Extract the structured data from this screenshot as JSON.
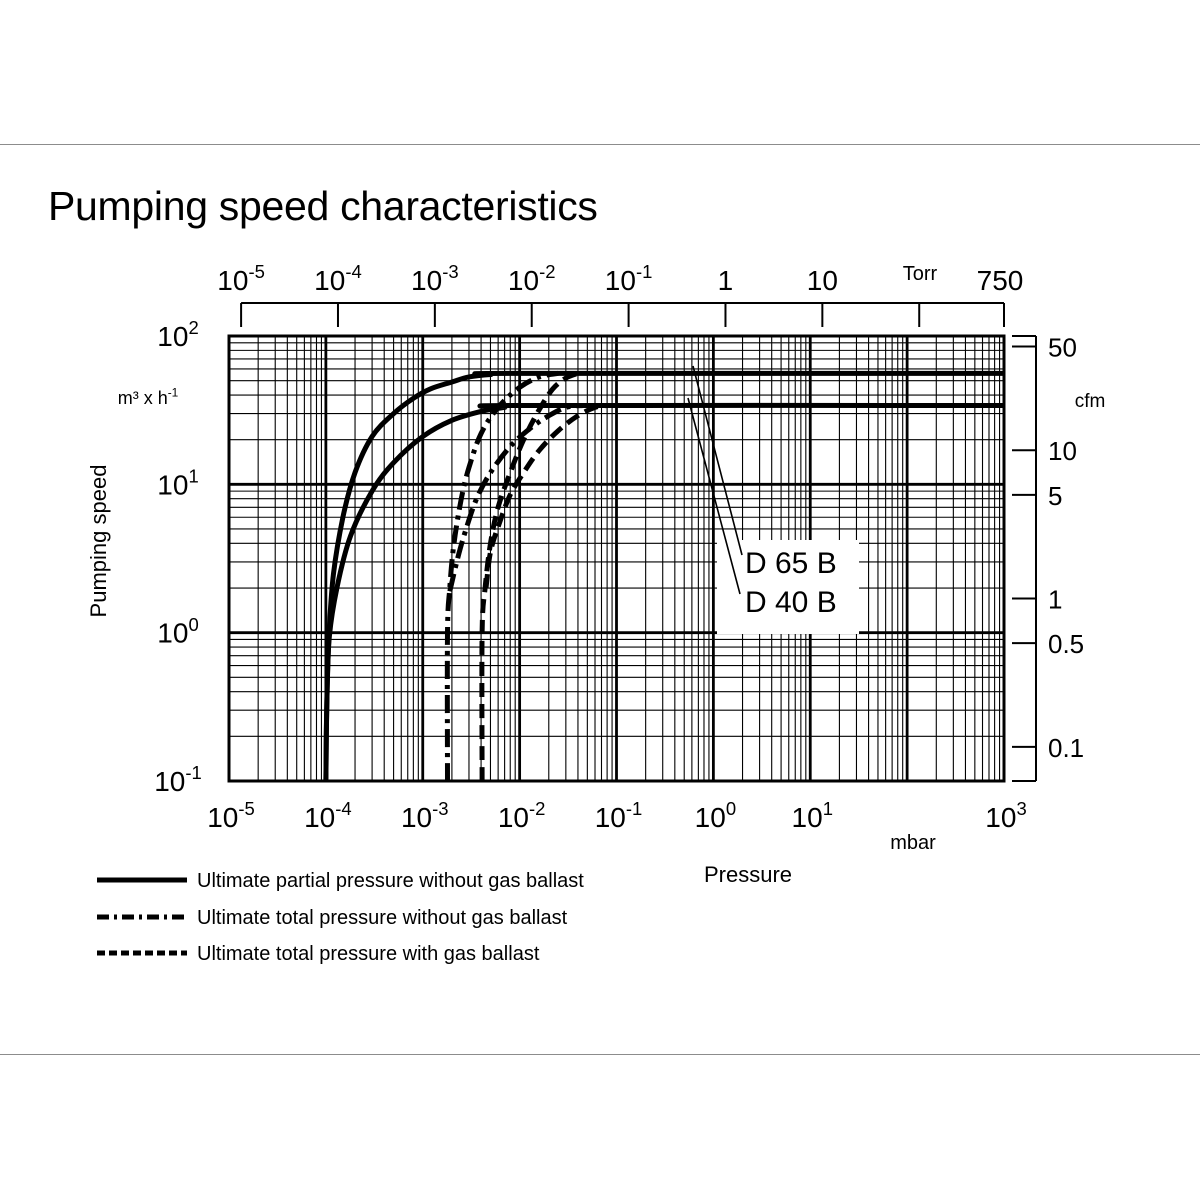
{
  "title": "Pumping speed characteristics",
  "chart_data": {
    "type": "line",
    "title": "Pumping speed characteristics",
    "xlabel": "Pressure",
    "x_unit": "mbar",
    "ylabel": "Pumping speed",
    "y_unit": {
      "base": "m³ x h",
      "exp": "-1"
    },
    "x_scale": "log",
    "y_scale": "log",
    "xlim": [
      1e-05,
      1000
    ],
    "ylim": [
      0.1,
      100
    ],
    "grid": true,
    "x_ticks": [
      {
        "base": "10",
        "exp": "-5",
        "value": 1e-05
      },
      {
        "base": "10",
        "exp": "-4",
        "value": 0.0001
      },
      {
        "base": "10",
        "exp": "-3",
        "value": 0.001
      },
      {
        "base": "10",
        "exp": "-2",
        "value": 0.01
      },
      {
        "base": "10",
        "exp": "-1",
        "value": 0.1
      },
      {
        "base": "10",
        "exp": "0",
        "value": 1
      },
      {
        "base": "10",
        "exp": "1",
        "value": 10
      },
      {
        "base": "10",
        "exp": "3",
        "value": 1000
      }
    ],
    "y_ticks": [
      {
        "base": "10",
        "exp": "2",
        "value": 100
      },
      {
        "base": "10",
        "exp": "1",
        "value": 10
      },
      {
        "base": "10",
        "exp": "0",
        "value": 1
      },
      {
        "base": "10",
        "exp": "-1",
        "value": 0.1
      }
    ],
    "torr_axis": {
      "unit": "Torr",
      "ticks": [
        {
          "base": "10",
          "exp": "-5",
          "value": 1e-05
        },
        {
          "base": "10",
          "exp": "-4",
          "value": 0.0001
        },
        {
          "base": "10",
          "exp": "-3",
          "value": 0.001
        },
        {
          "base": "10",
          "exp": "-2",
          "value": 0.01
        },
        {
          "base": "10",
          "exp": "-1",
          "value": 0.1
        },
        {
          "base": "1",
          "exp": "",
          "value": 1
        },
        {
          "base": "10",
          "exp": "",
          "value": 10
        },
        {
          "base": "",
          "exp": "",
          "value": 100
        },
        {
          "base": "750",
          "exp": "",
          "value": 750
        }
      ]
    },
    "cfm_axis": {
      "unit": "cfm",
      "ticks": [
        {
          "label": "50",
          "value": 50
        },
        {
          "label": "10",
          "value": 10
        },
        {
          "label": "5",
          "value": 5
        },
        {
          "label": "1",
          "value": 1
        },
        {
          "label": "0.5",
          "value": 0.5
        },
        {
          "label": "0.1",
          "value": 0.1
        }
      ]
    },
    "curve_labels": [
      "D 65 B",
      "D 40 B"
    ],
    "series": [
      {
        "pump": "D 65 B",
        "legend": "Ultimate partial pressure without gas ballast",
        "style": "solid",
        "points": [
          [
            0.0001,
            0.1
          ],
          [
            0.000102,
            0.3
          ],
          [
            0.000108,
            1.0
          ],
          [
            0.00012,
            2.5
          ],
          [
            0.00015,
            6
          ],
          [
            0.0002,
            12
          ],
          [
            0.0003,
            21
          ],
          [
            0.0005,
            30
          ],
          [
            0.0008,
            38
          ],
          [
            0.0012,
            44
          ],
          [
            0.002,
            49
          ],
          [
            0.003,
            53
          ],
          [
            0.005,
            55
          ],
          [
            0.01,
            56
          ],
          [
            1000,
            56
          ]
        ]
      },
      {
        "pump": "D 40 B",
        "legend": "Ultimate partial pressure without gas ballast",
        "style": "solid",
        "points": [
          [
            0.0001,
            0.1
          ],
          [
            0.000102,
            0.3
          ],
          [
            0.000108,
            0.9
          ],
          [
            0.00013,
            2.0
          ],
          [
            0.00018,
            4.5
          ],
          [
            0.0003,
            9
          ],
          [
            0.0005,
            14
          ],
          [
            0.001,
            21
          ],
          [
            0.002,
            27
          ],
          [
            0.004,
            31
          ],
          [
            0.007,
            33
          ],
          [
            0.01,
            34
          ],
          [
            1000,
            34
          ]
        ]
      },
      {
        "pump": "D 65 B",
        "legend": "Ultimate total pressure without gas ballast",
        "style": "dashdot",
        "points": [
          [
            0.0018,
            0.1
          ],
          [
            0.0018,
            1.0
          ],
          [
            0.0019,
            2.0
          ],
          [
            0.0021,
            4.0
          ],
          [
            0.0025,
            8
          ],
          [
            0.003,
            13
          ],
          [
            0.004,
            22
          ],
          [
            0.006,
            33
          ],
          [
            0.01,
            45
          ],
          [
            0.016,
            53
          ],
          [
            0.025,
            56
          ]
        ]
      },
      {
        "pump": "D 40 B",
        "legend": "Ultimate total pressure without gas ballast",
        "style": "dashdot",
        "points": [
          [
            0.0019,
            1.9
          ],
          [
            0.0023,
            3.2
          ],
          [
            0.0028,
            5.0
          ],
          [
            0.0036,
            8
          ],
          [
            0.005,
            12
          ],
          [
            0.008,
            18
          ],
          [
            0.013,
            24
          ],
          [
            0.02,
            29
          ],
          [
            0.03,
            33
          ],
          [
            0.045,
            34
          ]
        ]
      },
      {
        "pump": "D 65 B",
        "legend": "Ultimate total pressure with gas ballast",
        "style": "dashed",
        "points": [
          [
            0.0041,
            0.1
          ],
          [
            0.0041,
            1.0
          ],
          [
            0.0044,
            2.0
          ],
          [
            0.005,
            4.0
          ],
          [
            0.006,
            7
          ],
          [
            0.008,
            12
          ],
          [
            0.011,
            20
          ],
          [
            0.016,
            32
          ],
          [
            0.022,
            44
          ],
          [
            0.03,
            52
          ],
          [
            0.04,
            56
          ]
        ]
      },
      {
        "pump": "D 40 B",
        "legend": "Ultimate total pressure with gas ballast",
        "style": "dashed",
        "points": [
          [
            0.0045,
            2.0
          ],
          [
            0.005,
            3.5
          ],
          [
            0.0062,
            5.5
          ],
          [
            0.008,
            8.5
          ],
          [
            0.011,
            12
          ],
          [
            0.016,
            17
          ],
          [
            0.025,
            23
          ],
          [
            0.04,
            29
          ],
          [
            0.06,
            33
          ],
          [
            0.08,
            34
          ]
        ]
      }
    ],
    "legend": [
      {
        "label": "Ultimate partial pressure without gas ballast",
        "style": "solid"
      },
      {
        "label": "Ultimate total pressure without gas ballast",
        "style": "dashdot"
      },
      {
        "label": "Ultimate total pressure with gas ballast",
        "style": "dashed"
      }
    ]
  }
}
